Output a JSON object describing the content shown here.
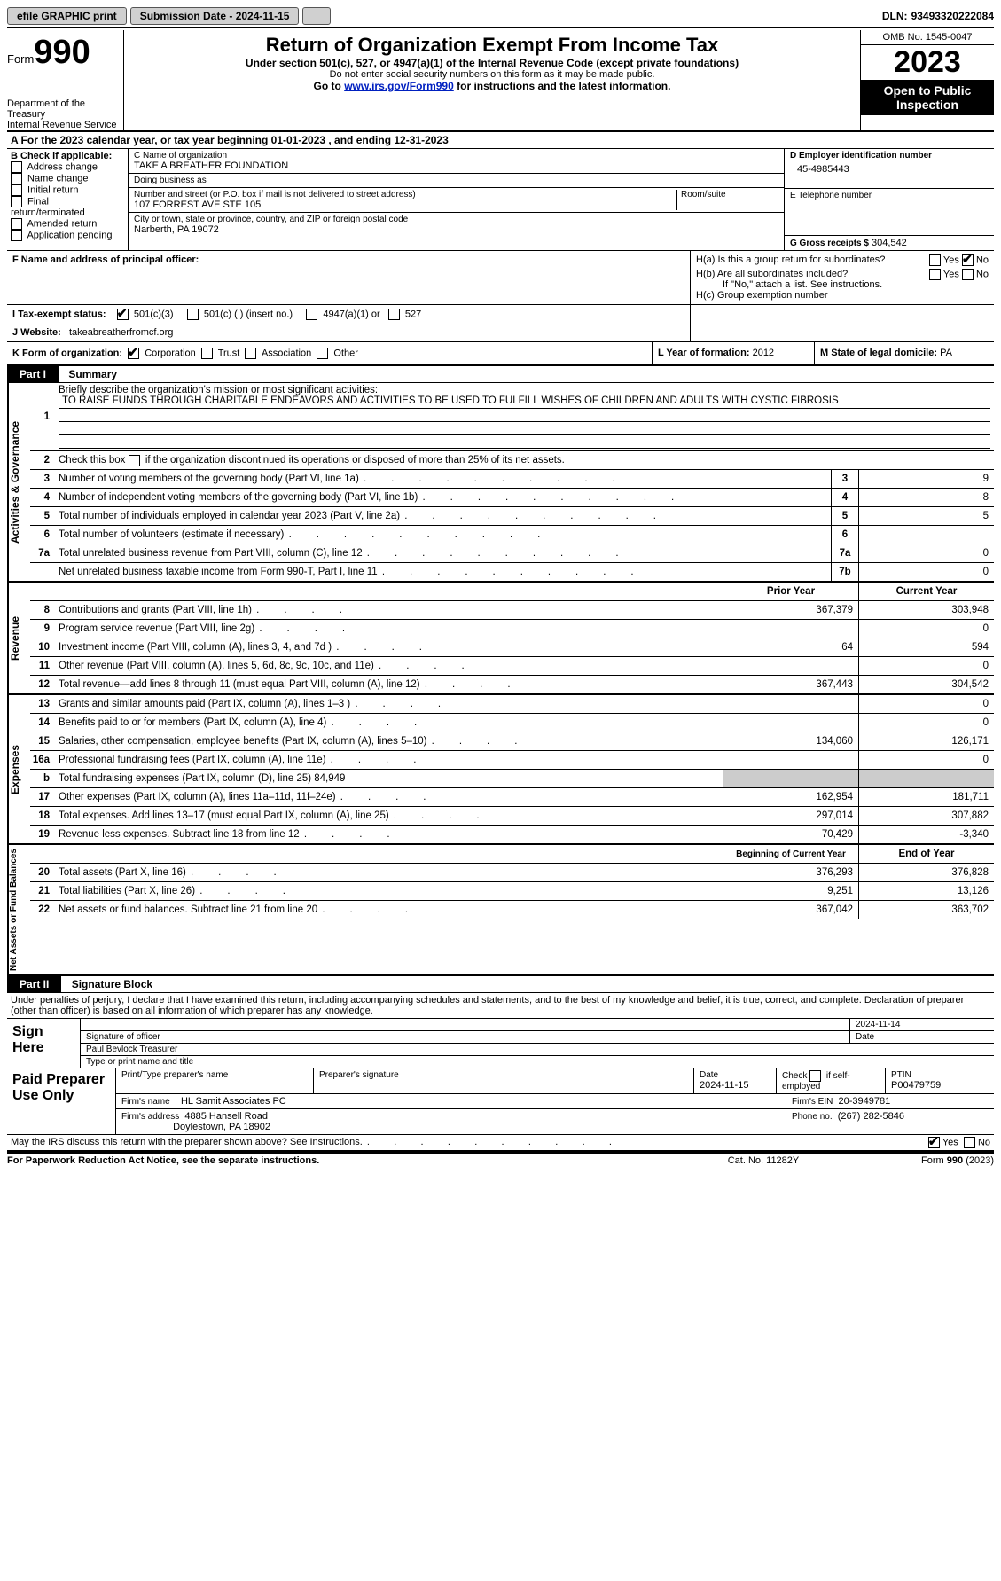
{
  "topbar": {
    "efile": "efile GRAPHIC print",
    "submission": "Submission Date - 2024-11-15",
    "dln_label": "DLN:",
    "dln": "93493320222084"
  },
  "header": {
    "form_word": "Form",
    "form_num": "990",
    "dept": "Department of the Treasury",
    "irs": "Internal Revenue Service",
    "title": "Return of Organization Exempt From Income Tax",
    "sub1": "Under section 501(c), 527, or 4947(a)(1) of the Internal Revenue Code (except private foundations)",
    "sub2": "Do not enter social security numbers on this form as it may be made public.",
    "sub3_pre": "Go to ",
    "sub3_link": "www.irs.gov/Form990",
    "sub3_post": " for instructions and the latest information.",
    "omb": "OMB No. 1545-0047",
    "year": "2023",
    "open": "Open to Public Inspection"
  },
  "row_a": "A For the 2023 calendar year, or tax year beginning 01-01-2023    , and ending 12-31-2023",
  "boxB": {
    "label": "B Check if applicable:",
    "opts": [
      "Address change",
      "Name change",
      "Initial return",
      "Final return/terminated",
      "Amended return",
      "Application pending"
    ]
  },
  "boxC": {
    "name_lbl": "C Name of organization",
    "name": "TAKE A BREATHER FOUNDATION",
    "dba_lbl": "Doing business as",
    "dba": "",
    "addr_lbl": "Number and street (or P.O. box if mail is not delivered to street address)",
    "room_lbl": "Room/suite",
    "addr": "107 FORREST AVE STE 105",
    "city_lbl": "City or town, state or province, country, and ZIP or foreign postal code",
    "city": "Narberth, PA  19072"
  },
  "boxD": {
    "lbl": "D Employer identification number",
    "val": "45-4985443"
  },
  "boxE": {
    "lbl": "E Telephone number",
    "val": ""
  },
  "boxG": {
    "lbl": "G Gross receipts $",
    "val": "304,542"
  },
  "boxF": {
    "lbl": "F  Name and address of principal officer:",
    "val": ""
  },
  "boxH": {
    "a": "H(a)  Is this a group return for subordinates?",
    "b": "H(b)  Are all subordinates included?",
    "b_note": "If \"No,\" attach a list. See instructions.",
    "c": "H(c)  Group exemption number",
    "yes": "Yes",
    "no": "No"
  },
  "boxI": {
    "lbl": "I   Tax-exempt status:",
    "o1": "501(c)(3)",
    "o2": "501(c) (  ) (insert no.)",
    "o3": "4947(a)(1) or",
    "o4": "527"
  },
  "boxJ": {
    "lbl": "J   Website:",
    "val": "takeabreatherfromcf.org"
  },
  "boxK": {
    "lbl": "K Form of organization:",
    "o1": "Corporation",
    "o2": "Trust",
    "o3": "Association",
    "o4": "Other"
  },
  "boxL": {
    "lbl": "L Year of formation:",
    "val": "2012"
  },
  "boxM": {
    "lbl": "M State of legal domicile:",
    "val": "PA"
  },
  "part1": {
    "tag": "Part I",
    "title": "Summary"
  },
  "summary": {
    "q1_lbl": "Briefly describe the organization's mission or most significant activities:",
    "q1_val": "TO RAISE FUNDS THROUGH CHARITABLE ENDEAVORS AND ACTIVITIES TO BE USED TO FULFILL WISHES OF CHILDREN AND ADULTS WITH CYSTIC FIBROSIS",
    "q2": "Check this box      if the organization discontinued its operations or disposed of more than 25% of its net assets.",
    "lines_ag": [
      {
        "n": "3",
        "d": "Number of voting members of the governing body (Part VI, line 1a)",
        "b": "3",
        "v": "9"
      },
      {
        "n": "4",
        "d": "Number of independent voting members of the governing body (Part VI, line 1b)",
        "b": "4",
        "v": "8"
      },
      {
        "n": "5",
        "d": "Total number of individuals employed in calendar year 2023 (Part V, line 2a)",
        "b": "5",
        "v": "5"
      },
      {
        "n": "6",
        "d": "Total number of volunteers (estimate if necessary)",
        "b": "6",
        "v": ""
      },
      {
        "n": "7a",
        "d": "Total unrelated business revenue from Part VIII, column (C), line 12",
        "b": "7a",
        "v": "0"
      },
      {
        "n": "",
        "d": "Net unrelated business taxable income from Form 990-T, Part I, line 11",
        "b": "7b",
        "v": "0"
      }
    ],
    "hdr_prior": "Prior Year",
    "hdr_curr": "Current Year",
    "rev": [
      {
        "n": "8",
        "d": "Contributions and grants (Part VIII, line 1h)",
        "p": "367,379",
        "c": "303,948"
      },
      {
        "n": "9",
        "d": "Program service revenue (Part VIII, line 2g)",
        "p": "",
        "c": "0"
      },
      {
        "n": "10",
        "d": "Investment income (Part VIII, column (A), lines 3, 4, and 7d )",
        "p": "64",
        "c": "594"
      },
      {
        "n": "11",
        "d": "Other revenue (Part VIII, column (A), lines 5, 6d, 8c, 9c, 10c, and 11e)",
        "p": "",
        "c": "0"
      },
      {
        "n": "12",
        "d": "Total revenue—add lines 8 through 11 (must equal Part VIII, column (A), line 12)",
        "p": "367,443",
        "c": "304,542"
      }
    ],
    "exp": [
      {
        "n": "13",
        "d": "Grants and similar amounts paid (Part IX, column (A), lines 1–3 )",
        "p": "",
        "c": "0"
      },
      {
        "n": "14",
        "d": "Benefits paid to or for members (Part IX, column (A), line 4)",
        "p": "",
        "c": "0"
      },
      {
        "n": "15",
        "d": "Salaries, other compensation, employee benefits (Part IX, column (A), lines 5–10)",
        "p": "134,060",
        "c": "126,171"
      },
      {
        "n": "16a",
        "d": "Professional fundraising fees (Part IX, column (A), line 11e)",
        "p": "",
        "c": "0"
      },
      {
        "n": "b",
        "d": "Total fundraising expenses (Part IX, column (D), line 25) 84,949",
        "p": "SHADE",
        "c": "SHADE"
      },
      {
        "n": "17",
        "d": "Other expenses (Part IX, column (A), lines 11a–11d, 11f–24e)",
        "p": "162,954",
        "c": "181,711"
      },
      {
        "n": "18",
        "d": "Total expenses. Add lines 13–17 (must equal Part IX, column (A), line 25)",
        "p": "297,014",
        "c": "307,882"
      },
      {
        "n": "19",
        "d": "Revenue less expenses. Subtract line 18 from line 12",
        "p": "70,429",
        "c": "-3,340"
      }
    ],
    "hdr_boy": "Beginning of Current Year",
    "hdr_eoy": "End of Year",
    "na": [
      {
        "n": "20",
        "d": "Total assets (Part X, line 16)",
        "p": "376,293",
        "c": "376,828"
      },
      {
        "n": "21",
        "d": "Total liabilities (Part X, line 26)",
        "p": "9,251",
        "c": "13,126"
      },
      {
        "n": "22",
        "d": "Net assets or fund balances. Subtract line 21 from line 20",
        "p": "367,042",
        "c": "363,702"
      }
    ],
    "vlabels": {
      "ag": "Activities & Governance",
      "rev": "Revenue",
      "exp": "Expenses",
      "na": "Net Assets or Fund Balances"
    }
  },
  "part2": {
    "tag": "Part II",
    "title": "Signature Block"
  },
  "sig": {
    "declare": "Under penalties of perjury, I declare that I have examined this return, including accompanying schedules and statements, and to the best of my knowledge and belief, it is true, correct, and complete. Declaration of preparer (other than officer) is based on all information of which preparer has any knowledge.",
    "sign_here": "Sign Here",
    "sig_officer": "Signature of officer",
    "date": "Date",
    "date_val": "2024-11-14",
    "officer_name": "Paul Bevlock  Treasurer",
    "type_name": "Type or print name and title",
    "paid": "Paid Preparer Use Only",
    "prep_name_lbl": "Print/Type preparer's name",
    "prep_sig_lbl": "Preparer's signature",
    "prep_date_lbl": "Date",
    "prep_date": "2024-11-15",
    "check_self": "Check      if self-employed",
    "ptin_lbl": "PTIN",
    "ptin": "P00479759",
    "firm_name_lbl": "Firm's name",
    "firm_name": "HL Samit Associates PC",
    "firm_ein_lbl": "Firm's EIN",
    "firm_ein": "20-3949781",
    "firm_addr_lbl": "Firm's address",
    "firm_addr1": "4885 Hansell Road",
    "firm_addr2": "Doylestown, PA  18902",
    "phone_lbl": "Phone no.",
    "phone": "(267) 282-5846",
    "discuss": "May the IRS discuss this return with the preparer shown above? See Instructions."
  },
  "footer": {
    "left": "For Paperwork Reduction Act Notice, see the separate instructions.",
    "mid": "Cat. No. 11282Y",
    "right": "Form 990 (2023)"
  }
}
